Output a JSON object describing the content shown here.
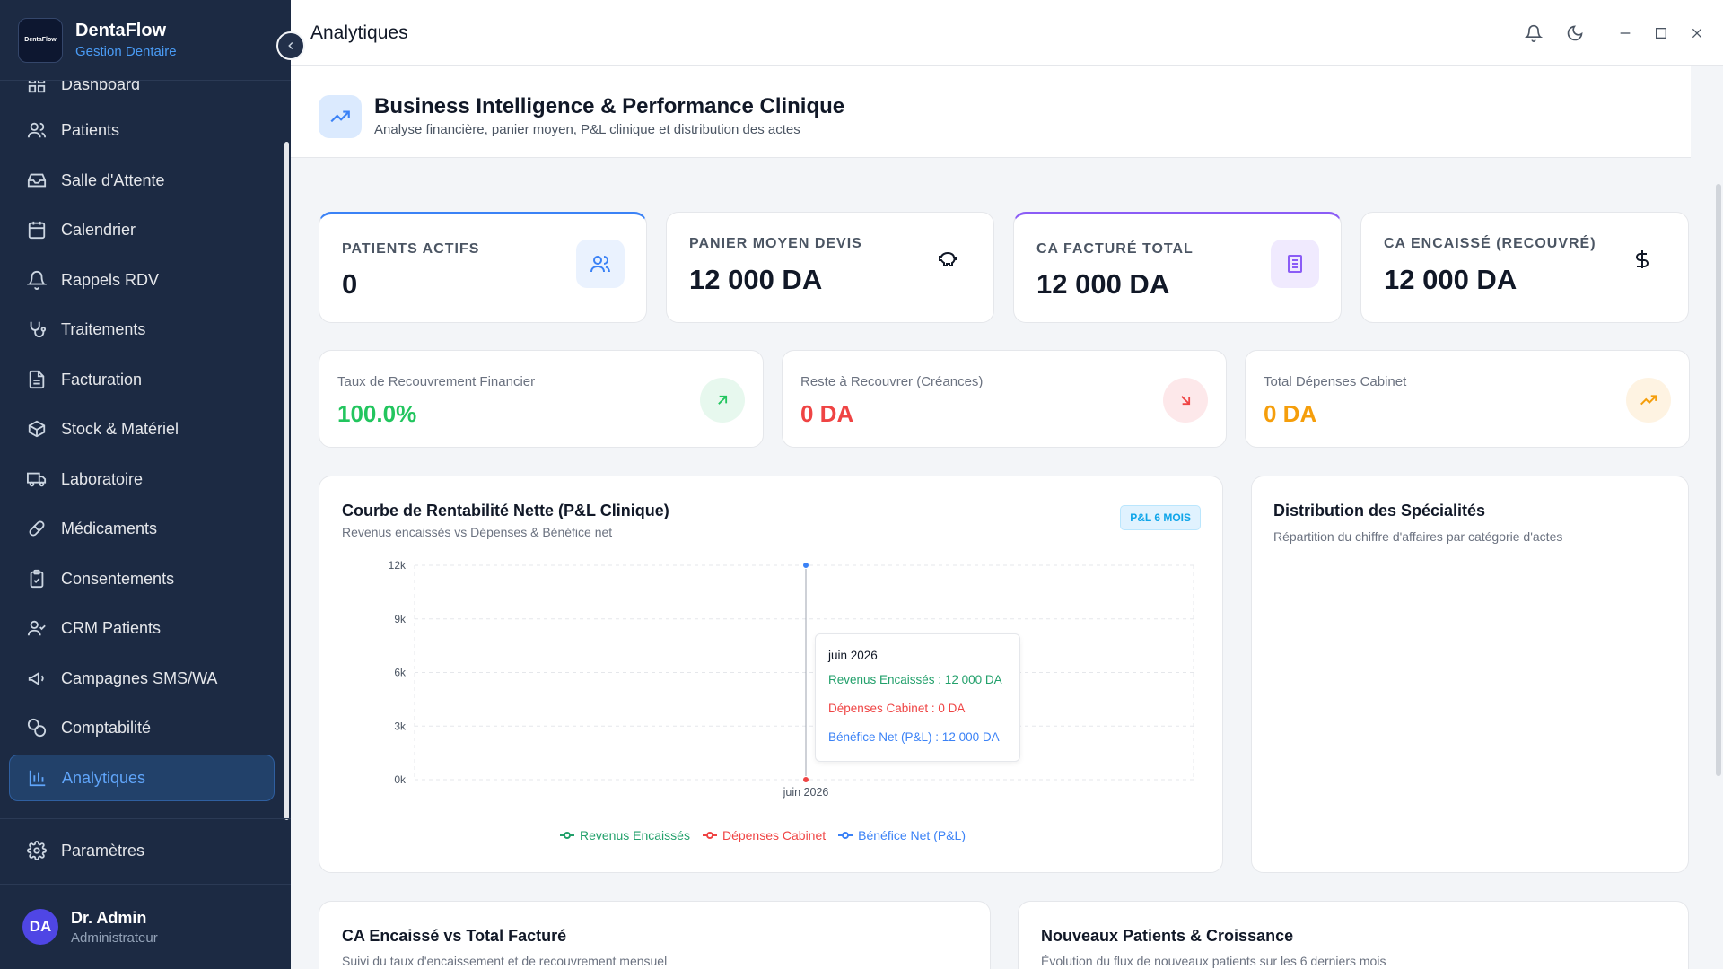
{
  "brand": {
    "name": "DentaFlow",
    "subtitle": "Gestion Dentaire",
    "logo_text": "DentaFlow"
  },
  "sidebar": {
    "items": [
      {
        "label": "Dashboard",
        "icon": "dashboard-icon"
      },
      {
        "label": "Patients",
        "icon": "users-icon"
      },
      {
        "label": "Salle d'Attente",
        "icon": "inbox-icon"
      },
      {
        "label": "Calendrier",
        "icon": "calendar-icon"
      },
      {
        "label": "Rappels RDV",
        "icon": "bell-icon"
      },
      {
        "label": "Traitements",
        "icon": "stethoscope-icon"
      },
      {
        "label": "Facturation",
        "icon": "file-icon"
      },
      {
        "label": "Stock & Matériel",
        "icon": "box-icon"
      },
      {
        "label": "Laboratoire",
        "icon": "truck-icon"
      },
      {
        "label": "Médicaments",
        "icon": "pill-icon"
      },
      {
        "label": "Consentements",
        "icon": "clipboard-icon"
      },
      {
        "label": "CRM Patients",
        "icon": "user-check-icon"
      },
      {
        "label": "Campagnes SMS/WA",
        "icon": "megaphone-icon"
      },
      {
        "label": "Comptabilité",
        "icon": "coins-icon"
      },
      {
        "label": "Analytiques",
        "icon": "bar-chart-icon",
        "active": true
      }
    ],
    "settings_label": "Paramètres",
    "user": {
      "initials": "DA",
      "name": "Dr. Admin",
      "role": "Administrateur"
    }
  },
  "topbar": {
    "title": "Analytiques"
  },
  "header": {
    "title": "Business Intelligence & Performance Clinique",
    "subtitle": "Analyse financière, panier moyen, P&L clinique et distribution des actes"
  },
  "kpis": [
    {
      "label": "Patients Actifs",
      "value": "0",
      "icon": "users-icon"
    },
    {
      "label": "Panier Moyen Devis",
      "value": "12 000 DA",
      "icon": "piggy-bank-icon"
    },
    {
      "label": "CA Facturé Total",
      "value": "12 000 DA",
      "icon": "receipt-icon"
    },
    {
      "label": "CA Encaissé (Recouvré)",
      "value": "12 000 DA",
      "icon": "dollar-icon"
    }
  ],
  "stats": [
    {
      "label": "Taux de Recouvrement Financier",
      "value": "100.0%",
      "color": "#22c55e",
      "icon": "arrow-up-right-icon"
    },
    {
      "label": "Reste à Recouvrer (Créances)",
      "value": "0 DA",
      "color": "#ef4444",
      "icon": "arrow-down-right-icon"
    },
    {
      "label": "Total Dépenses Cabinet",
      "value": "0 DA",
      "color": "#f59e0b",
      "icon": "trending-up-icon"
    }
  ],
  "pl_panel": {
    "title": "Courbe de Rentabilité Nette (P&L Clinique)",
    "subtitle": "Revenus encaissés vs Dépenses & Bénéfice net",
    "badge": "P&L 6 MOIS"
  },
  "chart_data": {
    "type": "line",
    "title": "Courbe de Rentabilité Nette (P&L Clinique)",
    "x": [
      "juin 2026"
    ],
    "y_ticks": [
      "0k",
      "3k",
      "6k",
      "9k",
      "12k"
    ],
    "ylim": [
      0,
      12000
    ],
    "grid": true,
    "legend_position": "bottom",
    "series": [
      {
        "name": "Revenus Encaissés",
        "values": [
          12000
        ],
        "color": "#22a06b"
      },
      {
        "name": "Dépenses Cabinet",
        "values": [
          0
        ],
        "color": "#ef4444"
      },
      {
        "name": "Bénéfice Net (P&L)",
        "values": [
          12000
        ],
        "color": "#3b82f6"
      }
    ],
    "tooltip": {
      "title": "juin 2026",
      "lines": [
        "Revenus Encaissés : 12 000 DA",
        "Dépenses Cabinet : 0 DA",
        "Bénéfice Net (P&L) : 12 000 DA"
      ]
    }
  },
  "dist_panel": {
    "title": "Distribution des Spécialités",
    "subtitle": "Répartition du chiffre d'affaires par catégorie d'actes"
  },
  "ca_panel": {
    "title": "CA Encaissé vs Total Facturé",
    "subtitle": "Suivi du taux d'encaissement et de recouvrement mensuel"
  },
  "growth_panel": {
    "title": "Nouveaux Patients & Croissance",
    "subtitle": "Évolution du flux de nouveaux patients sur les 6 derniers mois"
  }
}
